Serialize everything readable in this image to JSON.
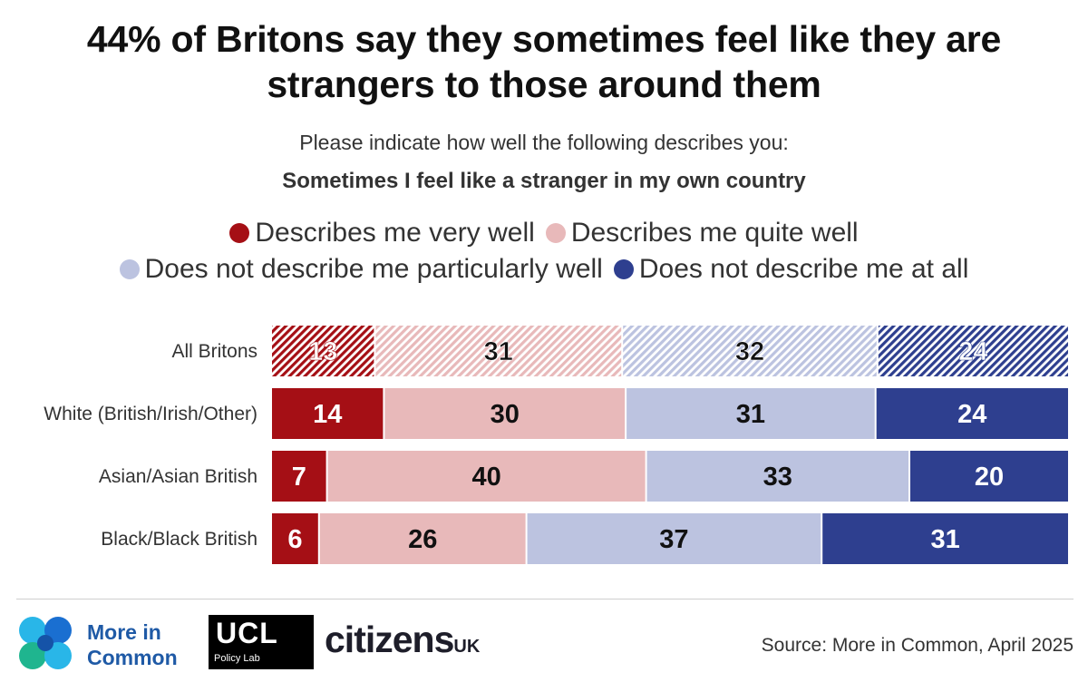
{
  "title_line1": "44% of Britons say they sometimes feel like they are",
  "title_line2": "strangers to those around them",
  "subtitle": "Please indicate how well the following describes you:",
  "statement": "Sometimes I feel like a stranger in my own country",
  "legend": [
    {
      "label": "Describes me very well",
      "color": "#a50f15"
    },
    {
      "label": "Describes me quite well",
      "color": "#e8b9ba"
    },
    {
      "label": "Does not describe me particularly well",
      "color": "#bcc3e0"
    },
    {
      "label": "Does not describe me at all",
      "color": "#2e3f8f"
    }
  ],
  "chart_data": {
    "type": "bar",
    "orientation": "horizontal-stacked-100",
    "categories": [
      "All Britons",
      "White (British/Irish/Other)",
      "Asian/Asian British",
      "Black/Black British"
    ],
    "series": [
      {
        "name": "Describes me very well",
        "color": "#a50f15",
        "label_color": "#ffffff",
        "values": [
          13,
          14,
          7,
          6
        ]
      },
      {
        "name": "Describes me quite well",
        "color": "#e8b9ba",
        "label_color": "#111111",
        "values": [
          31,
          30,
          40,
          26
        ]
      },
      {
        "name": "Does not describe me particularly well",
        "color": "#bcc3e0",
        "label_color": "#111111",
        "values": [
          32,
          31,
          33,
          37
        ]
      },
      {
        "name": "Does not describe me at all",
        "color": "#2e3f8f",
        "label_color": "#ffffff",
        "values": [
          24,
          24,
          20,
          31
        ]
      }
    ],
    "hatched_rows": [
      "All Britons"
    ],
    "legend_position": "top",
    "grid": false
  },
  "footer": {
    "logo1_line1": "More in",
    "logo1_line2": "Common",
    "logo2_big": "UCL",
    "logo2_small": "Policy Lab",
    "logo3_main": "citizens",
    "logo3_suffix": "UK",
    "source": "Source: More in Common, April 2025"
  }
}
